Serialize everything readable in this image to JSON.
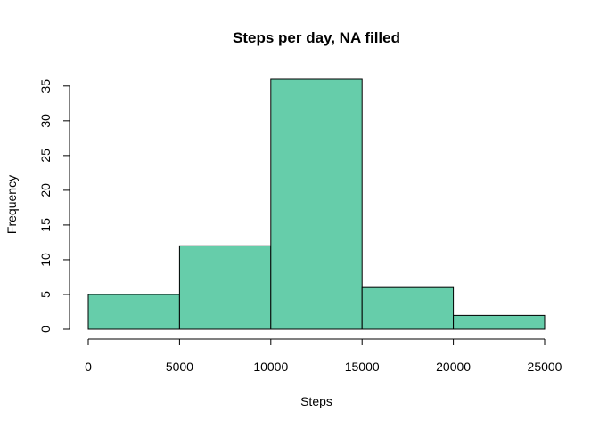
{
  "chart_data": {
    "type": "bar",
    "title": "Steps per day, NA filled",
    "xlabel": "Steps",
    "ylabel": "Frequency",
    "bins": [
      {
        "from": 0,
        "to": 5000,
        "count": 5
      },
      {
        "from": 5000,
        "to": 10000,
        "count": 12
      },
      {
        "from": 10000,
        "to": 15000,
        "count": 36
      },
      {
        "from": 15000,
        "to": 20000,
        "count": 6
      },
      {
        "from": 20000,
        "to": 25000,
        "count": 2
      }
    ],
    "xlim": [
      0,
      25000
    ],
    "ylim": [
      0,
      36
    ],
    "x_ticks": [
      0,
      5000,
      10000,
      15000,
      20000,
      25000
    ],
    "x_tick_labels": [
      "0",
      "5000",
      "10000",
      "15000",
      "20000",
      "25000"
    ],
    "y_ticks": [
      0,
      5,
      10,
      15,
      20,
      25,
      30,
      35
    ],
    "y_tick_labels": [
      "0",
      "5",
      "10",
      "15",
      "20",
      "25",
      "30",
      "35"
    ],
    "bar_color": "#66CDAA",
    "grid": false,
    "legend": "none"
  }
}
